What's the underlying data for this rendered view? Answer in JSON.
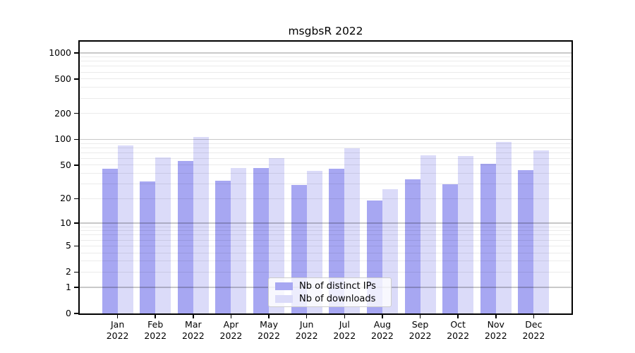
{
  "chart_data": {
    "type": "bar",
    "title": "msgbsR 2022",
    "x_year": "2022",
    "categories": [
      "Jan",
      "Feb",
      "Mar",
      "Apr",
      "May",
      "Jun",
      "Jul",
      "Aug",
      "Sep",
      "Oct",
      "Nov",
      "Dec"
    ],
    "series": [
      {
        "name": "Nb of distinct IPs",
        "color": "#a7a7f2",
        "values": [
          45,
          32,
          56,
          33,
          46,
          29,
          45,
          19,
          34,
          30,
          52,
          44
        ]
      },
      {
        "name": "Nb of downloads",
        "color": "#dbdbf9",
        "values": [
          85,
          62,
          106,
          46,
          61,
          43,
          79,
          26,
          65,
          64,
          94,
          74
        ]
      }
    ],
    "y_scale": "log10(1+value)",
    "y_ticks": [
      0,
      1,
      2,
      5,
      10,
      20,
      50,
      100,
      200,
      500,
      1000
    ],
    "y_major_gridlines": [
      1,
      10,
      100,
      1000
    ],
    "ylim": [
      0,
      1350
    ],
    "grid": "horizontal",
    "legend_position": "lower-center-inside"
  }
}
